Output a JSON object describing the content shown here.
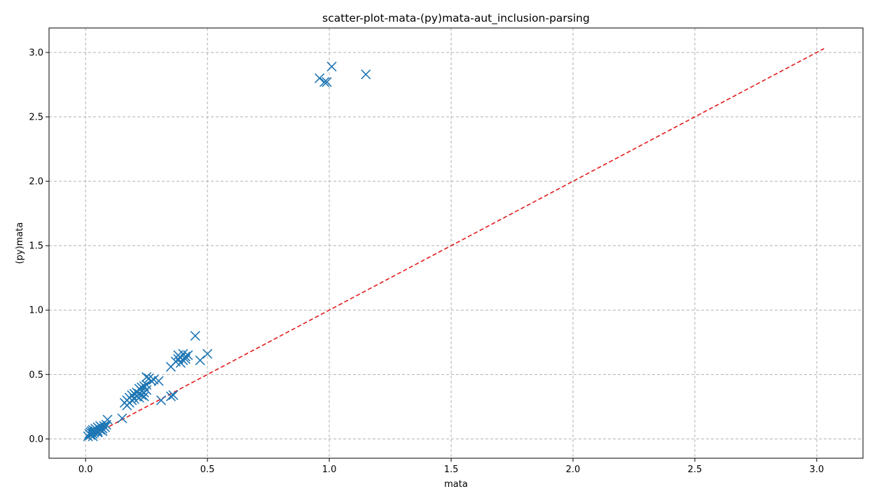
{
  "chart_data": {
    "type": "scatter",
    "title": "scatter-plot-mata-(py)mata-aut_inclusion-parsing",
    "xlabel": "mata",
    "ylabel": "(py)mata",
    "xlim": [
      -0.15,
      3.19
    ],
    "ylim": [
      -0.15,
      3.19
    ],
    "x_ticks": [
      0.0,
      0.5,
      1.0,
      1.5,
      2.0,
      2.5,
      3.0
    ],
    "y_ticks": [
      0.0,
      0.5,
      1.0,
      1.5,
      2.0,
      2.5,
      3.0
    ],
    "x_tick_labels": [
      "0.0",
      "0.5",
      "1.0",
      "1.5",
      "2.0",
      "2.5",
      "3.0"
    ],
    "y_tick_labels": [
      "0.0",
      "0.5",
      "1.0",
      "1.5",
      "2.0",
      "2.5",
      "3.0"
    ],
    "grid": true,
    "marker": "x",
    "colors": {
      "points": "#1f77b4",
      "reference_line": "#e31a1c",
      "grid": "#b0b0b0"
    },
    "reference_line": {
      "style": "dashed",
      "from": [
        0.0,
        0.0
      ],
      "to": [
        3.03,
        3.03
      ]
    },
    "series": [
      {
        "x": [
          0.01,
          0.015,
          0.02,
          0.02,
          0.025,
          0.03,
          0.03,
          0.035,
          0.04,
          0.04,
          0.045,
          0.05,
          0.05,
          0.055,
          0.06,
          0.06,
          0.065,
          0.07,
          0.075,
          0.08,
          0.085,
          0.09,
          0.03,
          0.05,
          0.07,
          0.15,
          0.16,
          0.17,
          0.17,
          0.18,
          0.18,
          0.19,
          0.19,
          0.2,
          0.2,
          0.21,
          0.21,
          0.22,
          0.22,
          0.22,
          0.23,
          0.23,
          0.23,
          0.24,
          0.24,
          0.24,
          0.25,
          0.25,
          0.25,
          0.26,
          0.27,
          0.28,
          0.3,
          0.31,
          0.35,
          0.36,
          0.35,
          0.37,
          0.38,
          0.38,
          0.39,
          0.39,
          0.4,
          0.4,
          0.41,
          0.41,
          0.42,
          0.45,
          0.47,
          0.5,
          0.96,
          0.98,
          0.99,
          1.01,
          1.15
        ],
        "y": [
          0.02,
          0.04,
          0.05,
          0.03,
          0.06,
          0.04,
          0.07,
          0.05,
          0.08,
          0.06,
          0.07,
          0.09,
          0.06,
          0.08,
          0.1,
          0.07,
          0.09,
          0.08,
          0.1,
          0.09,
          0.11,
          0.15,
          0.02,
          0.05,
          0.06,
          0.16,
          0.28,
          0.26,
          0.3,
          0.28,
          0.32,
          0.3,
          0.34,
          0.31,
          0.35,
          0.33,
          0.36,
          0.32,
          0.35,
          0.39,
          0.34,
          0.37,
          0.4,
          0.33,
          0.36,
          0.41,
          0.38,
          0.42,
          0.48,
          0.47,
          0.45,
          0.46,
          0.45,
          0.3,
          0.33,
          0.34,
          0.56,
          0.6,
          0.62,
          0.65,
          0.59,
          0.63,
          0.61,
          0.66,
          0.64,
          0.62,
          0.65,
          0.8,
          0.61,
          0.66,
          2.8,
          2.77,
          2.77,
          2.89,
          2.83
        ]
      }
    ]
  }
}
